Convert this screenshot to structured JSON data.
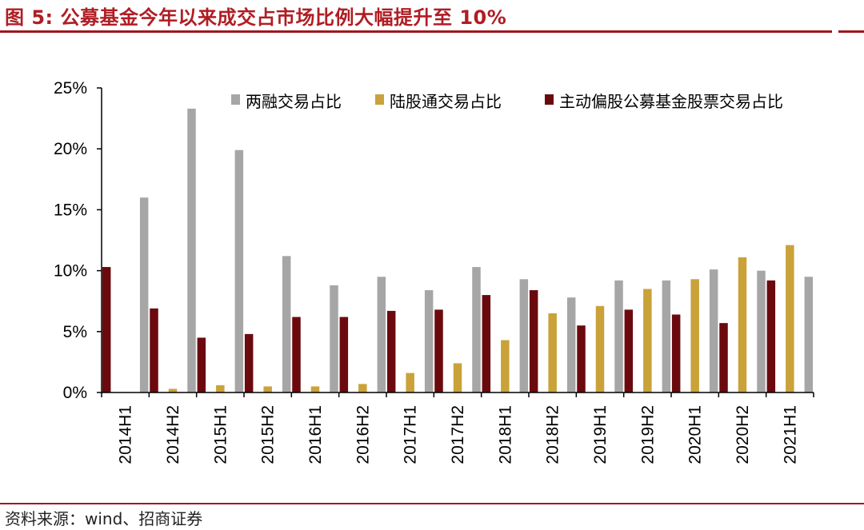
{
  "header": {
    "figure_title": "图 5:  公募基金今年以来成交占市场比例大幅提升至 10%"
  },
  "footer": {
    "source": "资料来源：wind、招商证券"
  },
  "chart_data": {
    "type": "bar",
    "categories": [
      "2014H1",
      "2014H2",
      "2015H1",
      "2015H2",
      "2016H1",
      "2016H2",
      "2017H1",
      "2017H2",
      "2018H1",
      "2018H2",
      "2019H1",
      "2019H2",
      "2020H1",
      "2020H2",
      "2021H1"
    ],
    "series": [
      {
        "name": "两融交易占比",
        "color": "#a6a6a6",
        "values": [
          16.0,
          23.3,
          19.9,
          11.2,
          8.8,
          9.5,
          8.4,
          10.3,
          9.3,
          7.8,
          9.2,
          9.2,
          10.1,
          10.0,
          9.5
        ]
      },
      {
        "name": "陆股通交易占比",
        "color": "#c9a23a",
        "values": [
          0,
          0.3,
          0.6,
          0.5,
          0.5,
          0.7,
          1.6,
          2.4,
          4.3,
          6.5,
          7.1,
          8.5,
          9.3,
          11.1,
          12.1
        ]
      },
      {
        "name": "主动偏股公募基金股票交易占比",
        "color": "#6b0a0e",
        "values": [
          10.3,
          6.9,
          4.5,
          4.8,
          6.2,
          6.2,
          6.7,
          6.8,
          8.0,
          8.4,
          5.5,
          6.8,
          6.4,
          5.7,
          9.2
        ]
      }
    ],
    "bar_order": [
      "主动偏股公募基金股票交易占比",
      "陆股通交易占比",
      "两融交易占比"
    ],
    "y_ticks": [
      "0%",
      "5%",
      "10%",
      "15%",
      "20%",
      "25%"
    ],
    "ylim": [
      0,
      25
    ],
    "y_unit": "%",
    "legend_position": "top-right",
    "grid": false,
    "xlabel": "",
    "ylabel": ""
  }
}
